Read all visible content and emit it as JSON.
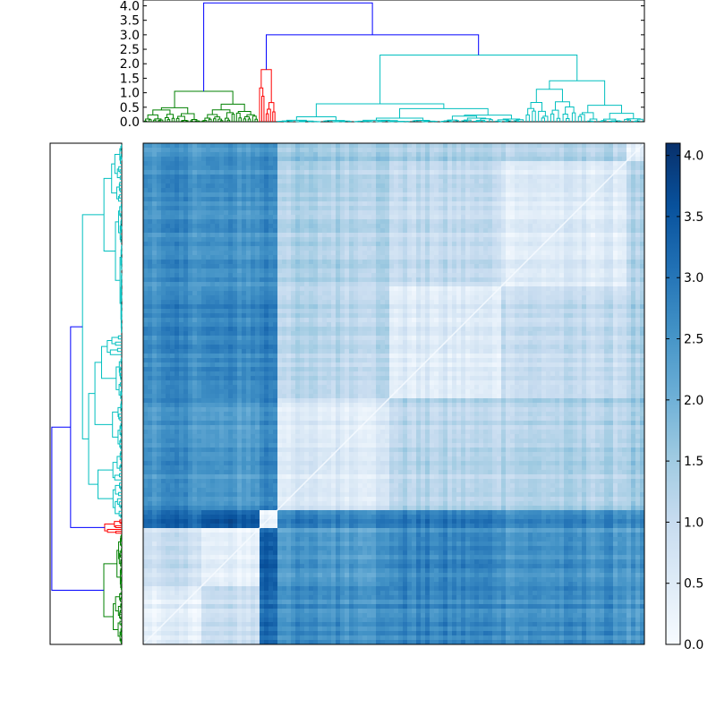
{
  "chart_data": [
    {
      "type": "dendrogram",
      "orientation": "top",
      "yticks": [
        0.0,
        0.5,
        1.0,
        1.5,
        2.0,
        2.5,
        3.0,
        3.5,
        4.0
      ],
      "ytick_labels": [
        "0.0",
        "0.5",
        "1.0",
        "1.5",
        "2.0",
        "2.5",
        "3.0",
        "3.5",
        "4.0"
      ],
      "ylim": [
        0,
        4.2
      ],
      "clusters": [
        {
          "color": "#008000",
          "range": [
            0.0,
            0.23
          ]
        },
        {
          "color": "#ff0000",
          "range": [
            0.23,
            0.265
          ]
        },
        {
          "color": "#00bfbf",
          "range": [
            0.265,
            1.0
          ]
        }
      ],
      "links_color": "#0000ff",
      "top_links": [
        {
          "left": 0.065,
          "right": 0.365,
          "height": 4.1
        },
        {
          "left": 0.23,
          "right": 0.5,
          "height": 3.0
        }
      ]
    },
    {
      "type": "dendrogram",
      "orientation": "left",
      "clusters": [
        {
          "color": "#00bfbf",
          "range": [
            0.0,
            0.75
          ]
        },
        {
          "color": "#ff0000",
          "range": [
            0.75,
            0.78
          ]
        },
        {
          "color": "#008000",
          "range": [
            0.78,
            1.0
          ]
        }
      ],
      "links_color": "#0000ff"
    },
    {
      "type": "heatmap",
      "colormap": "Blues",
      "vmin": 0.0,
      "vmax": 4.1,
      "colorbar_ticks": [
        0.0,
        0.5,
        1.0,
        1.5,
        2.0,
        2.5,
        3.0,
        3.5,
        4.0
      ],
      "colorbar_tick_labels": [
        "0.0",
        "0.5",
        "1.0",
        "1.5",
        "2.0",
        "2.5",
        "3.0",
        "3.5",
        "4.0"
      ],
      "block_boundaries": [
        0.0,
        0.115,
        0.23,
        0.265,
        0.49,
        0.715,
        0.96,
        1.0
      ],
      "block_matrix": [
        [
          0.4,
          0.9,
          3.2,
          2.6,
          2.7,
          2.6,
          2.4
        ],
        [
          0.9,
          0.3,
          3.4,
          2.4,
          2.7,
          2.5,
          2.4
        ],
        [
          3.2,
          3.4,
          0.2,
          2.8,
          2.9,
          2.7,
          2.6
        ],
        [
          2.6,
          2.4,
          2.8,
          0.6,
          1.2,
          1.3,
          1.5
        ],
        [
          2.7,
          2.7,
          2.9,
          1.2,
          0.5,
          1.0,
          1.3
        ],
        [
          2.6,
          2.5,
          2.7,
          1.3,
          1.0,
          0.5,
          1.2
        ],
        [
          2.4,
          2.4,
          2.6,
          1.5,
          1.3,
          1.2,
          0.3
        ]
      ]
    }
  ]
}
